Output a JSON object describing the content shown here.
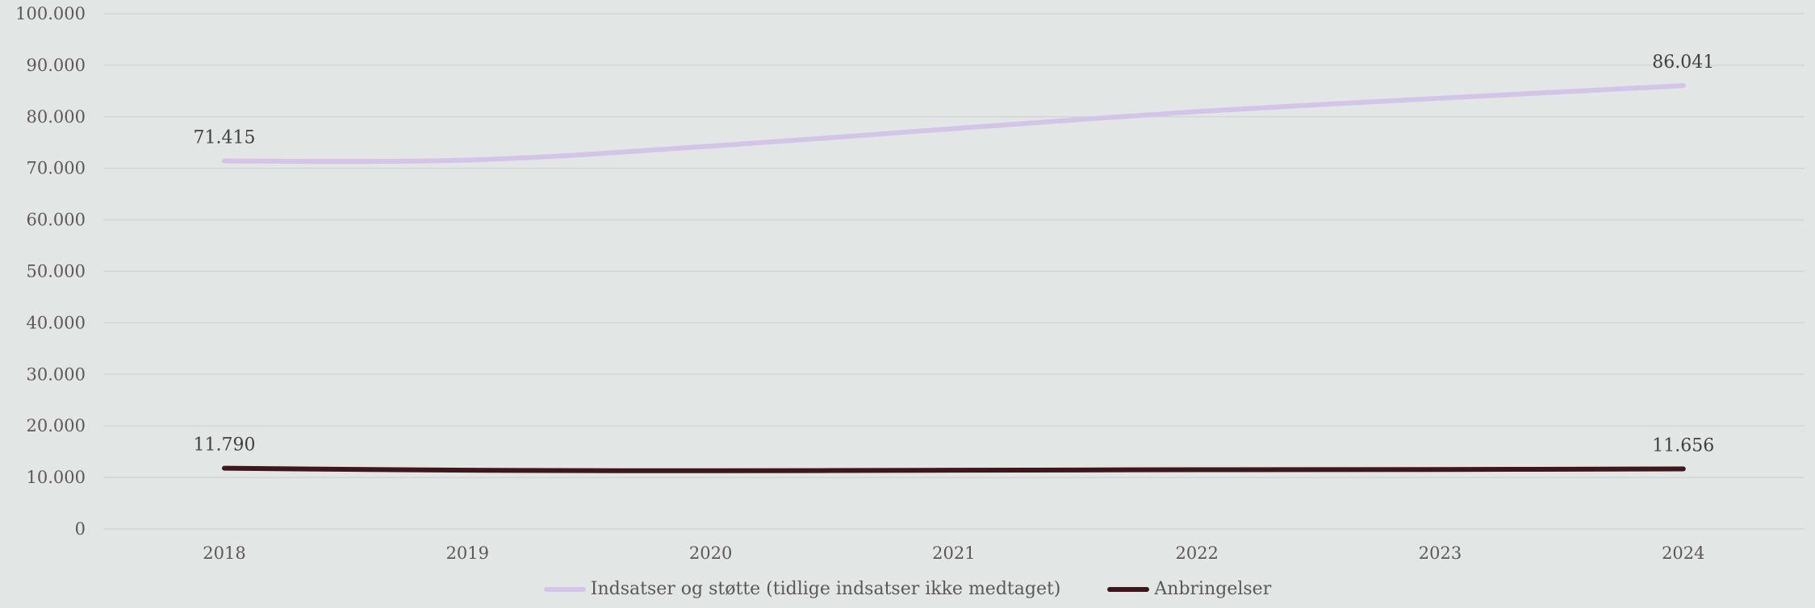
{
  "chart_data": {
    "type": "line",
    "title": "",
    "xlabel": "",
    "ylabel": "",
    "categories": [
      "2018",
      "2019",
      "2020",
      "2021",
      "2022",
      "2023",
      "2024"
    ],
    "ylim": [
      0,
      100000
    ],
    "yticks": [
      0,
      10000,
      20000,
      30000,
      40000,
      50000,
      60000,
      70000,
      80000,
      90000,
      100000
    ],
    "ytick_labels": [
      "0",
      "10.000",
      "20.000",
      "30.000",
      "40.000",
      "50.000",
      "60.000",
      "70.000",
      "80.000",
      "90.000",
      "100.000"
    ],
    "grid": "horizontal",
    "legend_position": "bottom",
    "series": [
      {
        "name": "Indsatser og støtte (tidlige indsatser ikke medtaget)",
        "color": "#d3c4ea",
        "values": [
          71415,
          71600,
          74300,
          77700,
          81000,
          83600,
          86041
        ],
        "data_labels": [
          {
            "index": 0,
            "text": "71.415"
          },
          {
            "index": 6,
            "text": "86.041"
          }
        ]
      },
      {
        "name": "Anbringelser",
        "color": "#3f1520",
        "values": [
          11790,
          11400,
          11300,
          11400,
          11500,
          11550,
          11656
        ],
        "data_labels": [
          {
            "index": 0,
            "text": "11.790"
          },
          {
            "index": 6,
            "text": "11.656"
          }
        ]
      }
    ]
  }
}
